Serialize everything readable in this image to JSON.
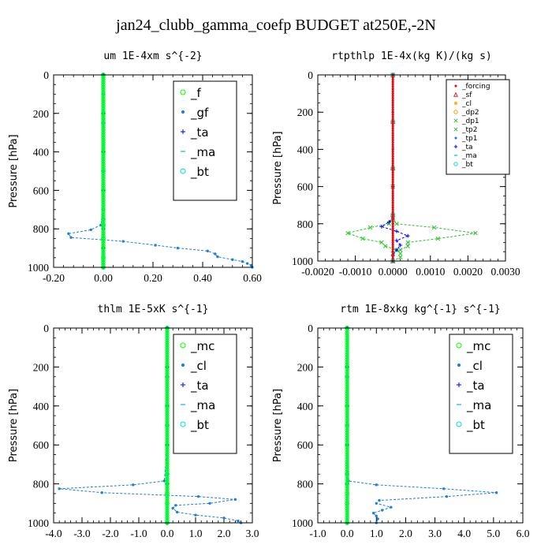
{
  "title": "jan24_clubb_gamma_coefp  BUDGET at250E,-2N",
  "chart_data": [
    {
      "type": "line",
      "title": "um   1E-4xm s^{-2}",
      "ylabel": "Pressure [hPa]",
      "xlim": [
        -0.2,
        0.6
      ],
      "ylim": [
        1000,
        0
      ],
      "xticks": [
        "-0.20",
        "0.00",
        "0.20",
        "0.40",
        "0.60"
      ],
      "xtick_values": [
        -0.2,
        0.0,
        0.2,
        0.4,
        0.6
      ],
      "yticks": [
        "0",
        "200",
        "400",
        "600",
        "800",
        "1000"
      ],
      "ytick_values": [
        0,
        200,
        400,
        600,
        800,
        1000
      ],
      "legend_style": "big",
      "series": [
        {
          "name": "_f",
          "color": "#00ff00",
          "marker": "circle",
          "x": [
            0.0,
            0.0,
            0.0,
            0.0,
            0.0,
            0.0,
            0.0,
            0.0,
            0.0
          ],
          "y": [
            0,
            200,
            400,
            600,
            780,
            850,
            900,
            950,
            1000
          ]
        },
        {
          "name": "_gf",
          "color": "#1e7fd8",
          "marker": "dot",
          "x": [
            0.0,
            0.0,
            0.002,
            0.002,
            0.001,
            0.0,
            -0.01,
            -0.05,
            -0.14,
            -0.13,
            0.08,
            0.21,
            0.3,
            0.42,
            0.45,
            0.46,
            0.52,
            0.56,
            0.58,
            0.595,
            0.6
          ],
          "y": [
            0,
            100,
            200,
            400,
            600,
            700,
            780,
            805,
            825,
            845,
            865,
            885,
            900,
            915,
            930,
            945,
            960,
            970,
            980,
            990,
            1000
          ]
        },
        {
          "name": "_ta",
          "color": "#0000ff",
          "marker": "plus",
          "x": [
            0.0,
            0.0,
            0.0,
            0.0,
            0.0,
            0.0,
            0.0
          ],
          "y": [
            0,
            200,
            400,
            600,
            800,
            900,
            1000
          ]
        },
        {
          "name": "_ma",
          "color": "#00b8e8",
          "marker": "dash",
          "x": [
            0.0,
            0.0,
            0.0,
            0.0,
            0.0
          ],
          "y": [
            0,
            250,
            500,
            750,
            1000
          ]
        },
        {
          "name": "_bt",
          "color": "#00dddd",
          "marker": "circle",
          "x": [
            0.0,
            0.0,
            0.0,
            0.0,
            0.0
          ],
          "y": [
            0,
            250,
            500,
            750,
            1000
          ]
        }
      ]
    },
    {
      "type": "line",
      "title": "rtpthlp   1E-4x(kg K)/(kg s)",
      "ylabel": "Pressure [hPa]",
      "xlim": [
        -0.002,
        0.003
      ],
      "ylim": [
        1000,
        0
      ],
      "xticks": [
        "-0.0020",
        "-0.0010",
        "0.0000",
        "0.0010",
        "0.0020",
        "0.0030"
      ],
      "xtick_values": [
        -0.002,
        -0.001,
        0.0,
        0.001,
        0.002,
        0.003
      ],
      "yticks": [
        "0",
        "200",
        "400",
        "600",
        "800",
        "1000"
      ],
      "ytick_values": [
        0,
        200,
        400,
        600,
        800,
        1000
      ],
      "legend_style": "small",
      "series": [
        {
          "name": "_forcing",
          "color": "#ff0000",
          "marker": "dot",
          "x": [
            0.0,
            0.0,
            0.0,
            0.0,
            0.0
          ],
          "y": [
            0,
            250,
            500,
            750,
            1000
          ]
        },
        {
          "name": "_sf",
          "color": "#e02020",
          "marker": "tri",
          "x": [
            0.0,
            0.0,
            0.0,
            0.0,
            0.0
          ],
          "y": [
            0,
            250,
            500,
            750,
            1000
          ]
        },
        {
          "name": "_cl",
          "color": "#ffaa00",
          "marker": "star",
          "x": [
            0.0,
            0.0,
            0.0,
            0.0,
            0.0
          ],
          "y": [
            0,
            250,
            500,
            750,
            1000
          ]
        },
        {
          "name": "_dp2",
          "color": "#ff9900",
          "marker": "circle",
          "x": [
            0.0,
            0.0,
            0.0,
            0.0,
            0.0
          ],
          "y": [
            0,
            250,
            500,
            750,
            1000
          ]
        },
        {
          "name": "_dp1",
          "color": "#22cc22",
          "marker": "x",
          "x": [
            0.0,
            0.0,
            0.0,
            -0.0001,
            -0.0006,
            -0.0012,
            -0.0008,
            -0.0003,
            -0.0002,
            0.0001,
            0.0002,
            0.0002,
            0.0
          ],
          "y": [
            0,
            600,
            770,
            800,
            820,
            850,
            880,
            900,
            920,
            940,
            960,
            980,
            1000
          ]
        },
        {
          "name": "_tp2",
          "color": "#33bb33",
          "marker": "x",
          "x": [
            0.0,
            0.0,
            0.0,
            0.0001,
            0.0011,
            0.0022,
            0.0012,
            0.0004,
            0.0004,
            0.0002,
            0.0,
            0.0
          ],
          "y": [
            0,
            600,
            770,
            800,
            820,
            850,
            880,
            900,
            920,
            940,
            960,
            1000
          ]
        },
        {
          "name": "_tp1",
          "color": "#1e7fd8",
          "marker": "dot",
          "x": [
            0.0,
            0.0,
            0.0,
            0.0,
            0.0,
            0.0
          ],
          "y": [
            0,
            200,
            400,
            600,
            800,
            1000
          ]
        },
        {
          "name": "_ta",
          "color": "#0000ff",
          "marker": "plus",
          "x": [
            0.0,
            0.0,
            0.0,
            -0.0001,
            -0.0003,
            0.0001,
            0.0004,
            0.0001,
            0.0002,
            0.0001,
            0.0,
            0.0
          ],
          "y": [
            0,
            600,
            770,
            790,
            815,
            840,
            865,
            890,
            915,
            940,
            970,
            1000
          ]
        },
        {
          "name": "_ma",
          "color": "#00b8e8",
          "marker": "dash",
          "x": [
            0.0,
            0.0,
            0.0,
            0.0,
            0.0
          ],
          "y": [
            0,
            250,
            500,
            750,
            1000
          ]
        },
        {
          "name": "_bt",
          "color": "#00dddd",
          "marker": "circle",
          "x": [
            0.0,
            0.0,
            0.0,
            0.0,
            0.0
          ],
          "y": [
            0,
            250,
            500,
            750,
            1000
          ]
        }
      ]
    },
    {
      "type": "line",
      "title": "thlm   1E-5xK s^{-1}",
      "ylabel": "Pressure [hPa]",
      "xlim": [
        -4.0,
        3.0
      ],
      "ylim": [
        1000,
        0
      ],
      "xticks": [
        "-4.0",
        "-3.0",
        "-2.0",
        "-1.0",
        "0.0",
        "1.0",
        "2.0",
        "3.0"
      ],
      "xtick_values": [
        -4,
        -3,
        -2,
        -1,
        0,
        1,
        2,
        3
      ],
      "yticks": [
        "0",
        "200",
        "400",
        "600",
        "800",
        "1000"
      ],
      "ytick_values": [
        0,
        200,
        400,
        600,
        800,
        1000
      ],
      "legend_style": "big",
      "series": [
        {
          "name": "_mc",
          "color": "#00ff00",
          "marker": "circle",
          "x": [
            0.0,
            0.0,
            0.0,
            0.0,
            0.0,
            0.0,
            0.0,
            0.0
          ],
          "y": [
            0,
            200,
            400,
            600,
            800,
            850,
            900,
            1000
          ]
        },
        {
          "name": "_cl",
          "color": "#1e7fd8",
          "marker": "dot",
          "x": [
            0.0,
            0.0,
            0.0,
            -0.1,
            -1.2,
            -3.8,
            -2.3,
            1.1,
            2.4,
            1.5,
            0.3,
            0.2,
            0.35,
            1.0,
            2.0,
            2.5,
            2.6
          ],
          "y": [
            0,
            200,
            600,
            785,
            805,
            825,
            845,
            865,
            880,
            900,
            910,
            925,
            945,
            960,
            975,
            990,
            1000
          ]
        },
        {
          "name": "_ta",
          "color": "#0000ff",
          "marker": "plus",
          "x": [
            0.0,
            0.0,
            0.0,
            0.0,
            0.0,
            0.0
          ],
          "y": [
            0,
            200,
            400,
            600,
            800,
            1000
          ]
        },
        {
          "name": "_ma",
          "color": "#00b8e8",
          "marker": "dash",
          "x": [
            0.0,
            0.0,
            0.0,
            0.0,
            0.0
          ],
          "y": [
            0,
            250,
            500,
            750,
            1000
          ]
        },
        {
          "name": "_bt",
          "color": "#00dddd",
          "marker": "circle",
          "x": [
            0.0,
            0.0,
            0.0,
            0.0,
            0.0
          ],
          "y": [
            0,
            250,
            500,
            750,
            1000
          ]
        }
      ]
    },
    {
      "type": "line",
      "title": "rtm   1E-8xkg kg^{-1} s^{-1}",
      "ylabel": "Pressure [hPa]",
      "xlim": [
        -1.0,
        6.0
      ],
      "ylim": [
        1000,
        0
      ],
      "xticks": [
        "-1.0",
        "0.0",
        "1.0",
        "2.0",
        "3.0",
        "4.0",
        "5.0",
        "6.0"
      ],
      "xtick_values": [
        -1,
        0,
        1,
        2,
        3,
        4,
        5,
        6
      ],
      "yticks": [
        "0",
        "200",
        "400",
        "600",
        "800",
        "1000"
      ],
      "ytick_values": [
        0,
        200,
        400,
        600,
        800,
        1000
      ],
      "legend_style": "big",
      "series": [
        {
          "name": "_mc",
          "color": "#00ff00",
          "marker": "circle",
          "x": [
            0.0,
            0.0,
            0.0,
            0.0,
            0.0,
            0.0,
            0.0,
            0.0
          ],
          "y": [
            0,
            200,
            400,
            600,
            800,
            850,
            900,
            1000
          ]
        },
        {
          "name": "_cl",
          "color": "#1e7fd8",
          "marker": "dot",
          "x": [
            0.0,
            0.0,
            0.0,
            0.05,
            1.0,
            3.3,
            5.1,
            3.4,
            1.1,
            1.0,
            1.5,
            1.2,
            0.9,
            1.0,
            1.05,
            1.0
          ],
          "y": [
            0,
            200,
            600,
            785,
            805,
            825,
            845,
            865,
            885,
            900,
            920,
            935,
            950,
            965,
            980,
            1000
          ]
        },
        {
          "name": "_ta",
          "color": "#0000ff",
          "marker": "plus",
          "x": [
            0.0,
            0.0,
            0.0,
            0.0,
            0.0,
            0.0
          ],
          "y": [
            0,
            200,
            400,
            600,
            800,
            1000
          ]
        },
        {
          "name": "_ma",
          "color": "#00b8e8",
          "marker": "dash",
          "x": [
            0.0,
            0.0,
            0.0,
            0.0,
            0.0
          ],
          "y": [
            0,
            250,
            500,
            750,
            1000
          ]
        },
        {
          "name": "_bt",
          "color": "#00dddd",
          "marker": "circle",
          "x": [
            0.0,
            0.0,
            0.0,
            0.0,
            0.0
          ],
          "y": [
            0,
            250,
            500,
            750,
            1000
          ]
        }
      ]
    }
  ]
}
